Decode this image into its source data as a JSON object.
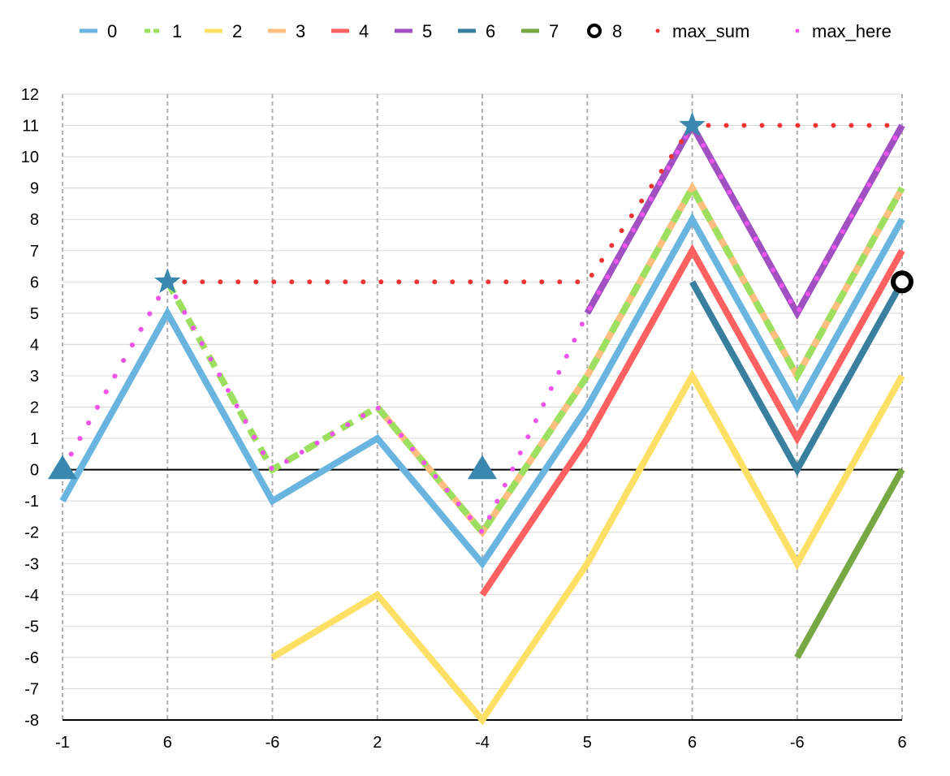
{
  "chart_data": {
    "type": "line",
    "categories": [
      "-1",
      "6",
      "-6",
      "2",
      "-4",
      "5",
      "6",
      "-6",
      "6"
    ],
    "ylim": [
      -8,
      12
    ],
    "y_ticks": [
      12,
      11,
      10,
      9,
      8,
      7,
      6,
      5,
      4,
      3,
      2,
      1,
      0,
      -1,
      -2,
      -3,
      -4,
      -5,
      -6,
      -7,
      -8
    ],
    "grid": true,
    "legend_position": "top",
    "series": [
      {
        "name": "0",
        "color": "#6ab4e0",
        "style": "solid",
        "values": [
          -1,
          5,
          -1,
          1,
          -3,
          2,
          8,
          2,
          8
        ]
      },
      {
        "name": "1",
        "color": "#9de060",
        "style": "dashed",
        "values": [
          null,
          6,
          0,
          2,
          -2,
          3,
          9,
          3,
          9
        ]
      },
      {
        "name": "2",
        "color": "#ffe066",
        "style": "solid",
        "values": [
          null,
          null,
          -6,
          -4,
          -8,
          -3,
          3,
          -3,
          3
        ]
      },
      {
        "name": "3",
        "color": "#ffbf80",
        "style": "solid",
        "values": [
          null,
          null,
          null,
          2,
          -2,
          3,
          9,
          3,
          9
        ]
      },
      {
        "name": "4",
        "color": "#ff6060",
        "style": "solid",
        "values": [
          null,
          null,
          null,
          null,
          -4,
          1,
          7,
          1,
          7
        ]
      },
      {
        "name": "5",
        "color": "#a050c0",
        "style": "solid",
        "values": [
          null,
          null,
          null,
          null,
          null,
          5,
          11,
          5,
          11
        ]
      },
      {
        "name": "6",
        "color": "#387fa0",
        "style": "solid",
        "values": [
          null,
          null,
          null,
          null,
          null,
          null,
          6,
          0,
          6
        ]
      },
      {
        "name": "7",
        "color": "#78a844",
        "style": "solid",
        "values": [
          null,
          null,
          null,
          null,
          null,
          null,
          null,
          -6,
          0
        ]
      },
      {
        "name": "8",
        "color": "#000000",
        "style": "ring",
        "values": [
          null,
          null,
          null,
          null,
          null,
          null,
          null,
          null,
          6
        ]
      },
      {
        "name": "max_sum",
        "color": "#ee3333",
        "style": "dotted",
        "values": [
          0,
          6,
          6,
          6,
          6,
          6,
          11,
          11,
          11
        ]
      },
      {
        "name": "max_here",
        "color": "#ee55ee",
        "style": "dotted",
        "values": [
          0,
          6,
          0,
          2,
          -2,
          5,
          11,
          5,
          11
        ]
      }
    ],
    "markers": [
      {
        "shape": "triangle",
        "color": "#3a88b0",
        "x_index": 0,
        "y": 0
      },
      {
        "shape": "triangle",
        "color": "#3a88b0",
        "x_index": 4,
        "y": 0
      },
      {
        "shape": "star",
        "color": "#3a88b0",
        "x_index": 1,
        "y": 6
      },
      {
        "shape": "star",
        "color": "#3a88b0",
        "x_index": 6,
        "y": 11
      }
    ],
    "reference_lines": [
      0,
      -8
    ]
  }
}
